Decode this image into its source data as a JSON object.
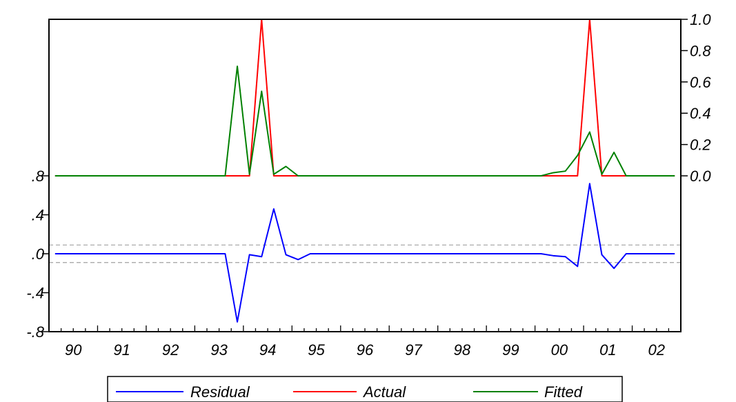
{
  "colors": {
    "residual": "#0000ff",
    "actual": "#ff0000",
    "fitted": "#008000",
    "band": "#a0a0a0",
    "axis": "#000000"
  },
  "legend": {
    "residual_label": "Residual",
    "actual_label": "Actual",
    "fitted_label": "Fitted"
  },
  "chart_data": {
    "type": "line",
    "title": "",
    "frequency": "quarterly",
    "x_start": "1990Q1",
    "x_end": "2002Q4",
    "x_tick_labels": [
      "90",
      "91",
      "92",
      "93",
      "94",
      "95",
      "96",
      "97",
      "98",
      "99",
      "00",
      "01",
      "02"
    ],
    "right_axis": {
      "ylim": [
        0.0,
        1.0
      ],
      "tick_labels": [
        "1.0",
        "0.8",
        "0.6",
        "0.4",
        "0.2",
        "0.0"
      ],
      "tick_values": [
        1.0,
        0.8,
        0.6,
        0.4,
        0.2,
        0.0
      ]
    },
    "left_axis": {
      "ylim": [
        -0.8,
        0.8
      ],
      "tick_labels": [
        ".8",
        ".4",
        ".0",
        "-.4",
        "-.8"
      ],
      "tick_values": [
        0.8,
        0.4,
        0.0,
        -0.4,
        -0.8
      ]
    },
    "std_band": [
      -0.09,
      0.09
    ],
    "legend_position": "bottom-center",
    "grid": false,
    "series": [
      {
        "name": "Residual",
        "axis": "left",
        "x": [
          "1993Q3",
          "1993Q4",
          "1994Q1",
          "1994Q2",
          "1994Q3",
          "1994Q4",
          "1995Q1",
          "2000Q1",
          "2000Q2",
          "2000Q3",
          "2000Q4",
          "2001Q1",
          "2001Q2",
          "2001Q3",
          "2001Q4"
        ],
        "y": [
          0.0,
          -0.7,
          -0.01,
          -0.03,
          0.46,
          -0.01,
          -0.06,
          0.0,
          -0.02,
          -0.03,
          -0.13,
          0.72,
          -0.01,
          -0.15,
          0.0
        ],
        "default_value": 0.0
      },
      {
        "name": "Actual",
        "axis": "right",
        "x": [
          "1993Q4",
          "1994Q1",
          "1994Q2",
          "1994Q3",
          "2000Q3",
          "2000Q4",
          "2001Q1",
          "2001Q2"
        ],
        "y": [
          0.0,
          0.0,
          1.0,
          0.0,
          0.0,
          0.0,
          1.0,
          0.0
        ],
        "default_value": 0.0
      },
      {
        "name": "Fitted",
        "axis": "right",
        "x": [
          "1993Q3",
          "1993Q4",
          "1994Q1",
          "1994Q2",
          "1994Q3",
          "1994Q4",
          "1995Q1",
          "2000Q1",
          "2000Q2",
          "2000Q3",
          "2000Q4",
          "2001Q1",
          "2001Q2",
          "2001Q3",
          "2001Q4"
        ],
        "y": [
          0.0,
          0.7,
          0.01,
          0.54,
          0.01,
          0.06,
          0.0,
          0.0,
          0.02,
          0.03,
          0.13,
          0.28,
          0.01,
          0.15,
          0.0
        ],
        "default_value": 0.0
      }
    ]
  }
}
